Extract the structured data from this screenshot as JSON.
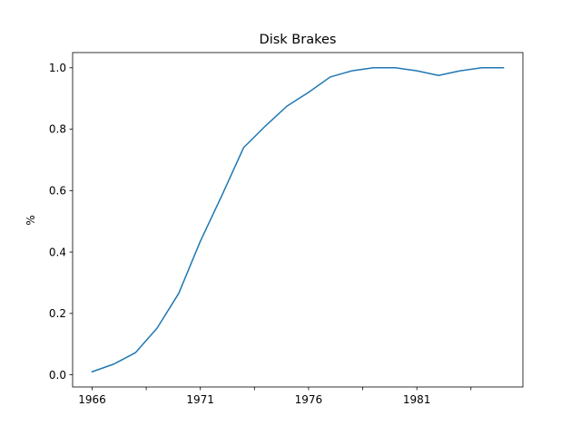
{
  "chart_data": {
    "type": "line",
    "title": "Disk Brakes",
    "xlabel": "",
    "ylabel": "%",
    "xlim": [
      1965.1,
      1985.9
    ],
    "ylim": [
      -0.0395,
      1.0495
    ],
    "x_ticks": [
      1966,
      1968.5,
      1971,
      1973.5,
      1976,
      1978.5,
      1981,
      1983.5
    ],
    "x_tick_labels": [
      "1966",
      "",
      "1971",
      "",
      "1976",
      "",
      "1981",
      ""
    ],
    "y_ticks": [
      0.0,
      0.2,
      0.4,
      0.6,
      0.8,
      1.0
    ],
    "y_tick_labels": [
      "0.0",
      "0.2",
      "0.4",
      "0.6",
      "0.8",
      "1.0"
    ],
    "grid": false,
    "series": [
      {
        "color": "#1f77b4",
        "x": [
          1966,
          1967,
          1968,
          1969,
          1970,
          1971,
          1972,
          1973,
          1974,
          1975,
          1976,
          1977,
          1978,
          1979,
          1980,
          1981,
          1982,
          1983,
          1984,
          1985
        ],
        "y": [
          0.01,
          0.035,
          0.072,
          0.152,
          0.265,
          0.435,
          0.585,
          0.74,
          0.81,
          0.875,
          0.92,
          0.97,
          0.99,
          1.0,
          1.0,
          0.99,
          0.975,
          0.99,
          1.0,
          1.0
        ]
      }
    ]
  }
}
